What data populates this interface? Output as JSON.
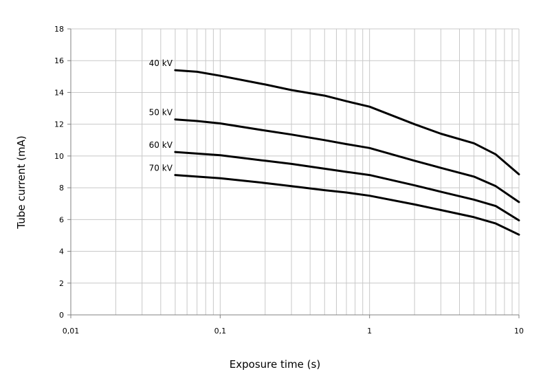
{
  "chart_data": {
    "type": "line",
    "xscale": "log",
    "xlim": [
      0.01,
      10
    ],
    "ylim": [
      0,
      18
    ],
    "xlabel": "Exposure time (s)",
    "ylabel": "Tube current (mA)",
    "x_ticks": [
      {
        "value": 0.01,
        "label": "0,01"
      },
      {
        "value": 0.1,
        "label": "0,1"
      },
      {
        "value": 1,
        "label": "1"
      },
      {
        "value": 10,
        "label": "10"
      }
    ],
    "y_ticks": [
      {
        "value": 0,
        "label": "0"
      },
      {
        "value": 2,
        "label": "2"
      },
      {
        "value": 4,
        "label": "4"
      },
      {
        "value": 6,
        "label": "6"
      },
      {
        "value": 8,
        "label": "8"
      },
      {
        "value": 10,
        "label": "10"
      },
      {
        "value": 12,
        "label": "12"
      },
      {
        "value": 14,
        "label": "14"
      },
      {
        "value": 16,
        "label": "16"
      },
      {
        "value": 18,
        "label": "18"
      }
    ],
    "grid": true,
    "series": [
      {
        "name": "40 kV",
        "x": [
          0.05,
          0.07,
          0.1,
          0.2,
          0.3,
          0.5,
          0.7,
          1,
          2,
          3,
          5,
          7,
          10
        ],
        "y": [
          15.4,
          15.3,
          15.05,
          14.5,
          14.15,
          13.8,
          13.45,
          13.1,
          12.0,
          11.4,
          10.8,
          10.1,
          8.85
        ]
      },
      {
        "name": "50 kV",
        "x": [
          0.05,
          0.07,
          0.1,
          0.2,
          0.3,
          0.5,
          0.7,
          1,
          2,
          3,
          5,
          7,
          10
        ],
        "y": [
          12.3,
          12.2,
          12.05,
          11.6,
          11.35,
          11.0,
          10.75,
          10.5,
          9.7,
          9.25,
          8.7,
          8.1,
          7.1
        ]
      },
      {
        "name": "60 kV",
        "x": [
          0.05,
          0.07,
          0.1,
          0.2,
          0.3,
          0.5,
          0.7,
          1,
          2,
          3,
          5,
          7,
          10
        ],
        "y": [
          10.25,
          10.15,
          10.05,
          9.7,
          9.5,
          9.2,
          9.0,
          8.8,
          8.15,
          7.75,
          7.25,
          6.85,
          5.95
        ]
      },
      {
        "name": "70 kV",
        "x": [
          0.05,
          0.07,
          0.1,
          0.2,
          0.3,
          0.5,
          0.7,
          1,
          2,
          3,
          5,
          7,
          10
        ],
        "y": [
          8.8,
          8.7,
          8.6,
          8.3,
          8.1,
          7.85,
          7.7,
          7.5,
          6.95,
          6.6,
          6.15,
          5.75,
          5.05
        ]
      }
    ]
  }
}
